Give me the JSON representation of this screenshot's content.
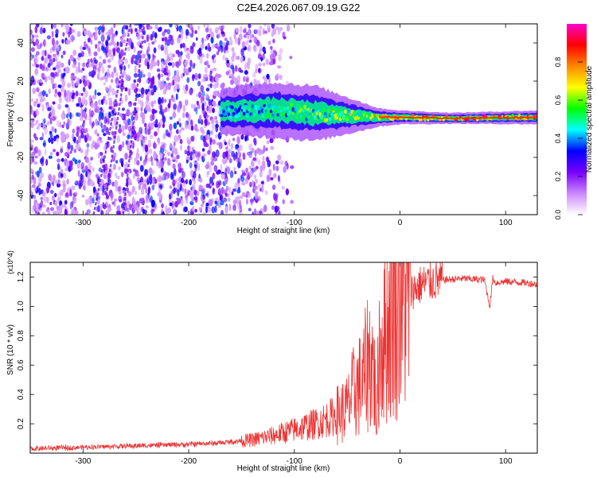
{
  "figure_title": "C2E4.2026.067.09.19.G22",
  "chart_data": [
    {
      "type": "heatmap",
      "title": "C2E4.2026.067.09.19.G22",
      "xlabel": "Height of straight line (km)",
      "ylabel": "Frequency (Hz)",
      "xlim": [
        -350,
        130
      ],
      "ylim": [
        -50,
        50
      ],
      "x_ticks": [
        -300,
        -200,
        -100,
        0,
        100
      ],
      "x_tick_labels": [
        "-300",
        "-200",
        "-100",
        "0",
        "100"
      ],
      "y_ticks": [
        -40,
        -20,
        0,
        20,
        40
      ],
      "y_tick_labels": [
        "-40",
        "-20",
        "0",
        "20",
        "40"
      ],
      "colorbar": {
        "label": "Normalized spectral amplitude",
        "range": [
          0,
          1
        ],
        "ticks": [
          0.0,
          0.2,
          0.4,
          0.6,
          0.8
        ],
        "tick_labels": [
          "0.0",
          "0.2",
          "0.4",
          "0.6",
          "0.8"
        ],
        "colormap": [
          "#ffffff",
          "#cc88ff",
          "#7700ff",
          "#0000ff",
          "#00ffff",
          "#00ff00",
          "#ffff00",
          "#ff8800",
          "#ff0000",
          "#ff00cc"
        ]
      },
      "signal_ridge": {
        "description": "narrow tone near 0 Hz",
        "points": [
          {
            "x": -170,
            "freq": 4,
            "spread": 5
          },
          {
            "x": -120,
            "freq": 5,
            "spread": 6
          },
          {
            "x": -80,
            "freq": 3,
            "spread": 6
          },
          {
            "x": -50,
            "freq": 2,
            "spread": 4
          },
          {
            "x": -20,
            "freq": 1,
            "spread": 2
          },
          {
            "x": 0,
            "freq": 1,
            "spread": 1.5
          },
          {
            "x": 50,
            "freq": 0.5,
            "spread": 1.2
          },
          {
            "x": 130,
            "freq": 1,
            "spread": 1.5
          }
        ]
      },
      "noise_region": {
        "x_start": -350,
        "x_end": -140,
        "note": "broadband noise, no signal"
      }
    },
    {
      "type": "line",
      "xlabel": "Height of straight line (km)",
      "ylabel": "SNR (10 * v/v)",
      "y_multiplier": "(x10^4)",
      "xlim": [
        -350,
        130
      ],
      "ylim": [
        0,
        13000
      ],
      "x_ticks": [
        -300,
        -200,
        -100,
        0,
        100
      ],
      "x_tick_labels": [
        "-300",
        "-200",
        "-100",
        "0",
        "100"
      ],
      "y_ticks": [
        2000,
        4000,
        6000,
        8000,
        10000,
        12000
      ],
      "y_tick_labels": [
        "0.2",
        "0.4",
        "0.6",
        "0.8",
        "1.0",
        "1.2"
      ],
      "color": "#ee3333",
      "series": [
        {
          "name": "SNR",
          "x": [
            -350,
            -300,
            -250,
            -200,
            -170,
            -140,
            -120,
            -100,
            -80,
            -70,
            -60,
            -50,
            -45,
            -40,
            -35,
            -30,
            -25,
            -22,
            -20,
            -15,
            -10,
            -5,
            0,
            10,
            20,
            30,
            40,
            50,
            60,
            80,
            85,
            88,
            90,
            100,
            110,
            120,
            130
          ],
          "y": [
            300,
            400,
            500,
            600,
            700,
            900,
            1200,
            1600,
            2000,
            2300,
            2600,
            3000,
            4000,
            4500,
            4800,
            6500,
            6000,
            2000,
            7000,
            8000,
            9000,
            10000,
            10500,
            11000,
            11500,
            11700,
            11800,
            11850,
            11900,
            11800,
            10000,
            12000,
            11600,
            11700,
            11650,
            11600,
            11500
          ]
        }
      ]
    }
  ]
}
